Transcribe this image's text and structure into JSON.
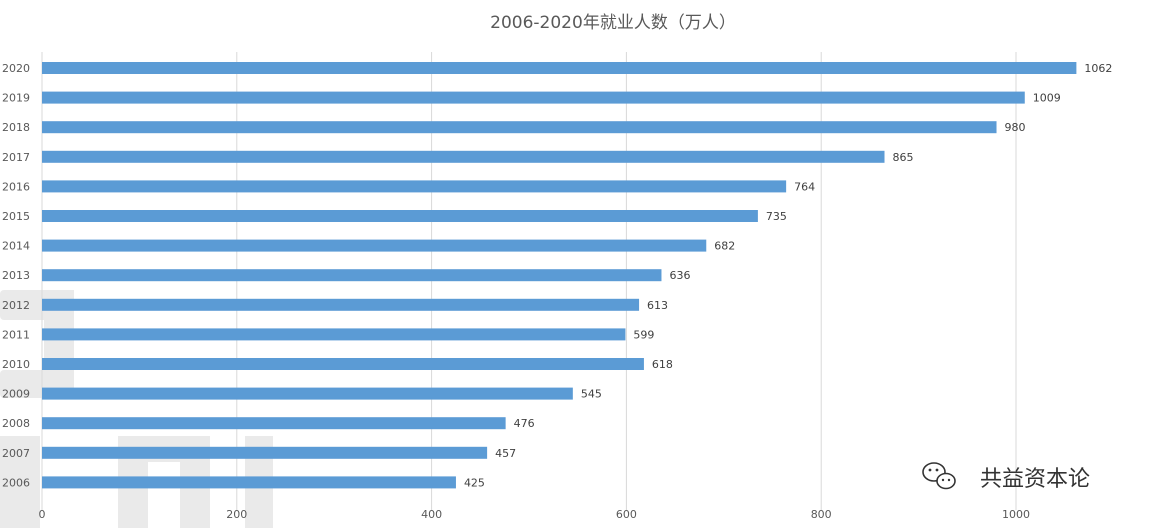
{
  "chart_data": {
    "type": "bar",
    "orientation": "horizontal",
    "title": "2006-2020年就业人数（万人）",
    "xlabel": "",
    "ylabel": "",
    "categories": [
      "2020",
      "2019",
      "2018",
      "2017",
      "2016",
      "2015",
      "2014",
      "2013",
      "2012",
      "2011",
      "2010",
      "2009",
      "2008",
      "2007",
      "2006"
    ],
    "values": [
      1062,
      1009,
      980,
      865,
      764,
      735,
      682,
      636,
      613,
      599,
      618,
      545,
      476,
      457,
      425
    ],
    "xlim": [
      0,
      1100
    ],
    "x_ticks": [
      0,
      200,
      400,
      600,
      800,
      1000
    ],
    "grid": true,
    "legend": "none",
    "bar_color": "#5b9bd5",
    "grid_color": "#d9d9d9"
  },
  "watermark": {
    "text": "共益资本论",
    "icon": "wechat-icon"
  }
}
